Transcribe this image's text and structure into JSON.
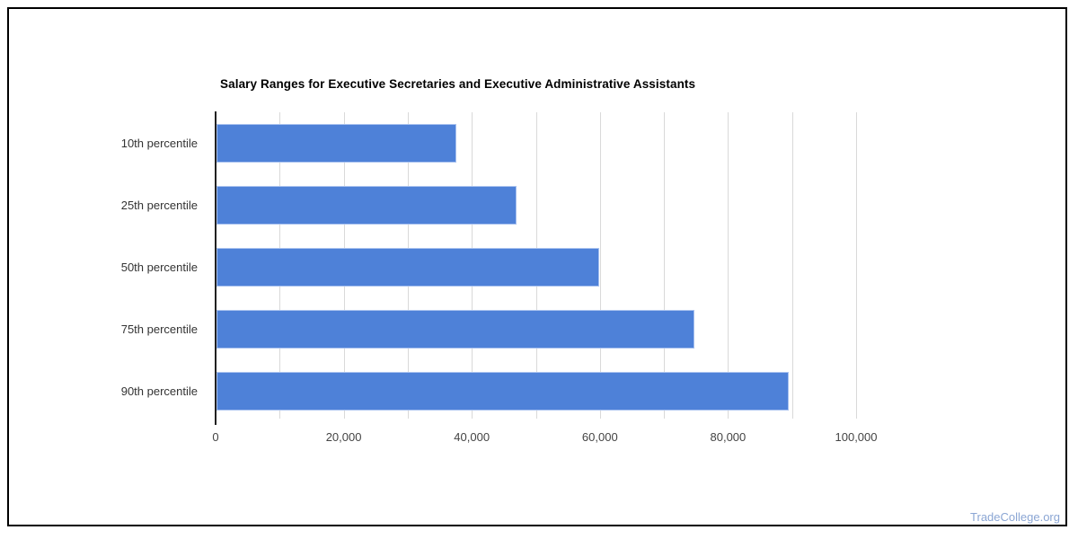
{
  "page": {
    "background": "#ffffff",
    "frame_border_color": "#000000",
    "footer_brand": "TradeCollege.org",
    "footer_brand_color": "#8ba6d4"
  },
  "chart_data": {
    "type": "bar",
    "orientation": "horizontal",
    "title": "Salary Ranges for Executive Secretaries and Executive Administrative Assistants",
    "categories": [
      "10th percentile",
      "25th percentile",
      "50th percentile",
      "75th percentile",
      "90th percentile"
    ],
    "values": [
      37400,
      46900,
      59700,
      74600,
      89300
    ],
    "xlabel": "",
    "ylabel": "",
    "xlim": [
      0,
      100000
    ],
    "grid": true,
    "grid_interval": 10000,
    "label_interval": 20000,
    "x_tick_labels": [
      "0",
      "20,000",
      "40,000",
      "60,000",
      "80,000",
      "100,000"
    ],
    "legend": "none",
    "bar_color": "#4e81d8",
    "bar_border_color": "#a9c2ef",
    "gridline_color": "#d9d9d9",
    "axis_line_color": "#212121",
    "title_color": "#000000",
    "category_label_color": "#333333",
    "tick_label_color": "#444444"
  }
}
